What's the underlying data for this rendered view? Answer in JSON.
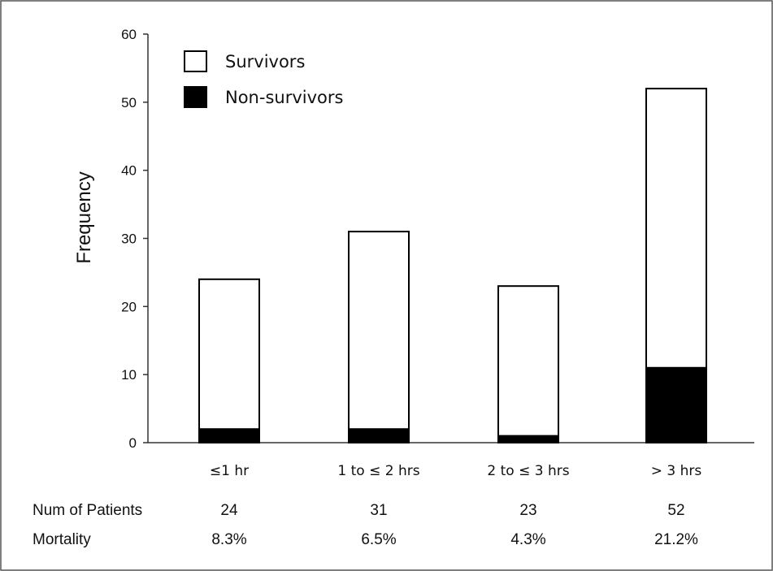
{
  "chart_data": {
    "type": "bar",
    "stacked": true,
    "categories": [
      "≤1 hr",
      "1 to ≤ 2 hrs",
      "2 to ≤ 3 hrs",
      "> 3 hrs"
    ],
    "series": [
      {
        "name": "Non-survivors",
        "values": [
          2,
          2,
          1,
          11
        ],
        "color": "#000000"
      },
      {
        "name": "Survivors",
        "values": [
          22,
          29,
          22,
          41
        ],
        "color": "#ffffff"
      }
    ],
    "ylabel": "Frequency",
    "xlabel": "",
    "ylim": [
      0,
      60
    ],
    "yticks": [
      0,
      10,
      20,
      30,
      40,
      50,
      60
    ],
    "grid": false,
    "legend": {
      "placement": "top-left",
      "entries": [
        "Survivors",
        "Non-survivors"
      ]
    },
    "table": {
      "rows": [
        {
          "label": "Num of Patients",
          "values": [
            "24",
            "31",
            "23",
            "52"
          ]
        },
        {
          "label": "Mortality",
          "values": [
            "8.3%",
            "6.5%",
            "4.3%",
            "21.2%"
          ]
        }
      ]
    }
  }
}
